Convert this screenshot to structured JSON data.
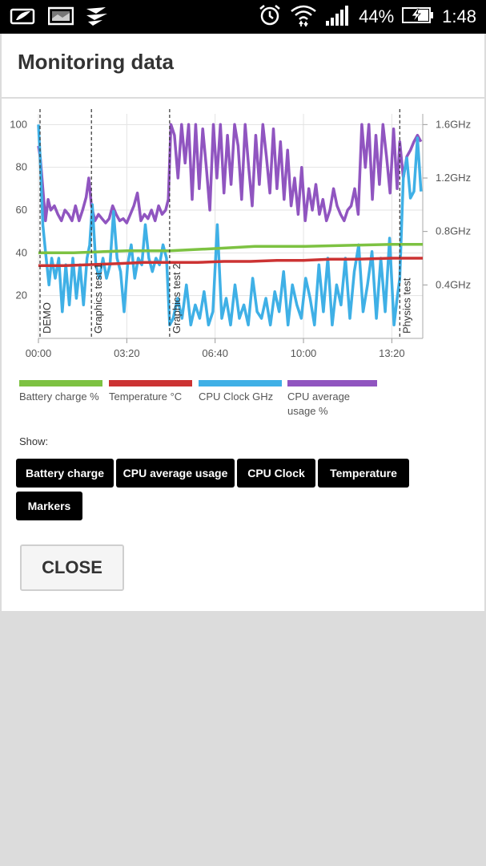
{
  "status_bar": {
    "battery_percent": "44%",
    "time": "1:48",
    "icons": [
      "notification-icon",
      "image-icon",
      "app-logo-icon",
      "alarm-icon",
      "wifi-icon",
      "signal-icon",
      "battery-charging-icon"
    ]
  },
  "dialog": {
    "title": "Monitoring data",
    "show_label": "Show:",
    "toggles": [
      "Battery charge",
      "CPU average usage",
      "CPU Clock",
      "Temperature",
      "Markers"
    ],
    "close_label": "CLOSE"
  },
  "legend": [
    {
      "label": "Battery charge %",
      "color": "#7dc242"
    },
    {
      "label": "Temperature °C",
      "color": "#cc3333"
    },
    {
      "label": "CPU Clock GHz",
      "color": "#3fb0e6"
    },
    {
      "label": "CPU average usage %",
      "color": "#9055c0"
    }
  ],
  "chart_data": {
    "type": "line",
    "x_unit": "time mm:ss",
    "x_range_seconds": [
      0,
      870
    ],
    "x_ticks": [
      "00:00",
      "03:20",
      "06:40",
      "10:00",
      "13:20"
    ],
    "x_tick_seconds": [
      0,
      200,
      400,
      600,
      800
    ],
    "left_axis": {
      "range": [
        0,
        105
      ],
      "ticks": [
        20,
        40,
        60,
        80,
        100
      ]
    },
    "right_axis": {
      "unit": "GHz",
      "range": [
        0,
        1.68
      ],
      "ticks": [
        "0.4GHz",
        "0.8GHz",
        "1.2GHz",
        "1.6GHz"
      ],
      "tick_values": [
        0.4,
        0.8,
        1.2,
        1.6
      ]
    },
    "grid": true,
    "markers": [
      {
        "label": "DEMO",
        "t": 0
      },
      {
        "label": "Graphics test 1",
        "t": 120
      },
      {
        "label": "Graphics test 2",
        "t": 297
      },
      {
        "label": "Physics test",
        "t": 818
      }
    ],
    "series": [
      {
        "name": "Battery charge %",
        "color": "#7dc242",
        "axis": "left",
        "t": [
          0,
          40,
          80,
          140,
          200,
          297,
          400,
          490,
          600,
          700,
          800,
          870
        ],
        "values": [
          40,
          40,
          40,
          40.5,
          41,
          41,
          42,
          43,
          43,
          43.5,
          44,
          44
        ]
      },
      {
        "name": "Temperature °C",
        "color": "#cc3333",
        "axis": "left",
        "t": [
          0,
          60,
          120,
          180,
          240,
          297,
          360,
          420,
          480,
          540,
          600,
          660,
          720,
          800,
          870
        ],
        "values": [
          34,
          34,
          34.5,
          35,
          35.5,
          35.5,
          35.5,
          36,
          36,
          36.5,
          36.5,
          37,
          37,
          37.5,
          37.5
        ]
      },
      {
        "name": "CPU Clock GHz",
        "color": "#3fb0e6",
        "axis": "right",
        "t": [
          0,
          4,
          10,
          16,
          24,
          30,
          38,
          46,
          54,
          62,
          70,
          78,
          86,
          94,
          102,
          110,
          116,
          122,
          130,
          138,
          146,
          154,
          162,
          170,
          178,
          186,
          194,
          202,
          210,
          218,
          226,
          234,
          242,
          250,
          258,
          266,
          274,
          282,
          290,
          297,
          305,
          315,
          325,
          335,
          345,
          355,
          365,
          375,
          385,
          395,
          405,
          415,
          425,
          435,
          445,
          455,
          465,
          475,
          485,
          495,
          505,
          515,
          525,
          535,
          545,
          555,
          565,
          575,
          585,
          595,
          605,
          615,
          625,
          635,
          645,
          655,
          665,
          675,
          685,
          695,
          705,
          715,
          725,
          735,
          745,
          755,
          765,
          775,
          785,
          795,
          805,
          812,
          818,
          826,
          834,
          842,
          850,
          858,
          866
        ],
        "values": [
          1.6,
          1.35,
          0.85,
          0.65,
          0.4,
          0.6,
          0.45,
          0.6,
          0.2,
          0.55,
          0.25,
          0.6,
          0.3,
          0.55,
          0.25,
          0.6,
          0.7,
          1.0,
          0.55,
          0.45,
          0.6,
          0.45,
          0.55,
          0.95,
          0.6,
          0.5,
          0.2,
          0.55,
          0.7,
          0.45,
          0.6,
          0.55,
          0.85,
          0.6,
          0.5,
          0.6,
          0.55,
          0.7,
          0.6,
          0.1,
          0.15,
          0.3,
          0.15,
          0.4,
          0.1,
          0.25,
          0.15,
          0.35,
          0.1,
          0.2,
          0.85,
          0.15,
          0.3,
          0.1,
          0.4,
          0.15,
          0.25,
          0.1,
          0.45,
          0.2,
          0.15,
          0.3,
          0.1,
          0.35,
          0.2,
          0.5,
          0.1,
          0.4,
          0.25,
          0.15,
          0.45,
          0.3,
          0.1,
          0.55,
          0.2,
          0.6,
          0.1,
          0.4,
          0.25,
          0.6,
          0.15,
          0.5,
          0.7,
          0.2,
          0.4,
          0.65,
          0.15,
          0.6,
          0.2,
          0.75,
          0.1,
          0.3,
          0.45,
          1.2,
          1.35,
          1.05,
          1.1,
          1.5,
          1.1
        ]
      },
      {
        "name": "CPU average usage %",
        "color": "#9055c0",
        "axis": "left",
        "t": [
          0,
          4,
          10,
          16,
          22,
          28,
          36,
          44,
          52,
          60,
          68,
          76,
          84,
          92,
          100,
          108,
          114,
          120,
          128,
          136,
          144,
          152,
          160,
          168,
          176,
          184,
          192,
          200,
          208,
          216,
          224,
          232,
          240,
          248,
          256,
          264,
          272,
          280,
          288,
          294,
          300,
          308,
          316,
          324,
          332,
          340,
          348,
          356,
          364,
          372,
          380,
          388,
          396,
          404,
          412,
          420,
          428,
          436,
          444,
          452,
          460,
          468,
          476,
          484,
          492,
          500,
          508,
          516,
          524,
          532,
          540,
          548,
          556,
          564,
          572,
          580,
          588,
          596,
          604,
          612,
          620,
          628,
          636,
          644,
          652,
          660,
          668,
          676,
          684,
          692,
          700,
          708,
          716,
          724,
          732,
          740,
          748,
          756,
          764,
          772,
          780,
          788,
          796,
          804,
          812,
          818,
          826,
          834,
          842,
          850,
          858,
          866
        ],
        "values": [
          90,
          85,
          70,
          55,
          65,
          60,
          62,
          58,
          55,
          60,
          58,
          55,
          62,
          55,
          60,
          66,
          75,
          62,
          55,
          58,
          56,
          54,
          56,
          62,
          58,
          55,
          56,
          54,
          58,
          62,
          68,
          55,
          58,
          56,
          60,
          55,
          62,
          58,
          60,
          65,
          100,
          95,
          75,
          100,
          82,
          100,
          65,
          100,
          70,
          98,
          80,
          60,
          100,
          75,
          100,
          68,
          95,
          72,
          100,
          90,
          65,
          100,
          80,
          62,
          95,
          72,
          100,
          85,
          68,
          98,
          70,
          92,
          65,
          88,
          62,
          75,
          58,
          80,
          55,
          70,
          60,
          72,
          58,
          65,
          55,
          60,
          70,
          62,
          58,
          55,
          60,
          62,
          70,
          58,
          100,
          80,
          100,
          65,
          95,
          72,
          100,
          85,
          68,
          98,
          70,
          92,
          75,
          85,
          88,
          92,
          95,
          92
        ]
      }
    ]
  }
}
